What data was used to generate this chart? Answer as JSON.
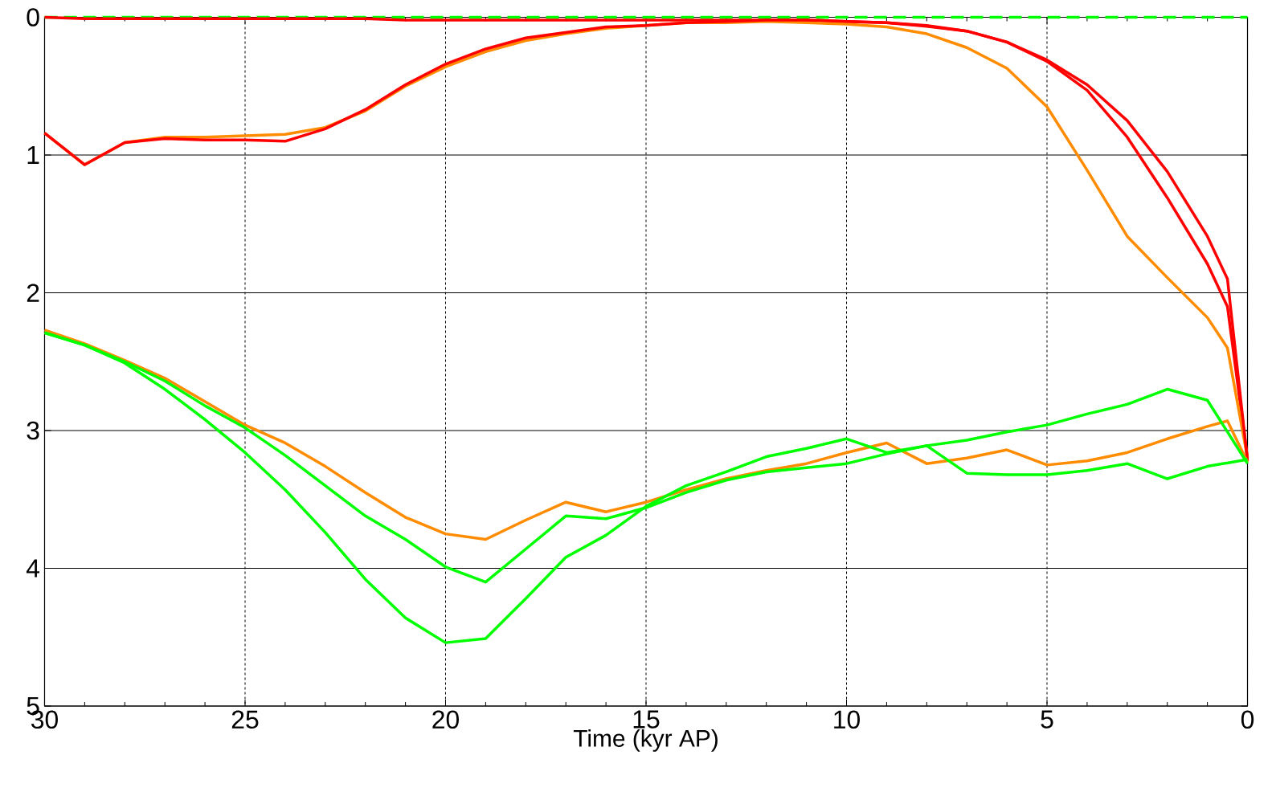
{
  "chart_data": {
    "type": "line",
    "xlabel": "Time (kyr AP)",
    "x": [
      30,
      29,
      28,
      27,
      26,
      25,
      24,
      23,
      22,
      21,
      20,
      19,
      18,
      17,
      16,
      15,
      14,
      13,
      12,
      11,
      10,
      9,
      8,
      7,
      6,
      5,
      4,
      3,
      2,
      1,
      0.5,
      0
    ],
    "xlim": [
      30,
      0
    ],
    "xticks": [
      30,
      25,
      20,
      15,
      10,
      5,
      0
    ],
    "ylim": [
      5,
      0
    ],
    "yticks": [
      0,
      1,
      2,
      3,
      4,
      5
    ],
    "grid": true,
    "marker": "none",
    "series": [
      {
        "color": "#00ff00",
        "line_style": "dashed",
        "values": [
          0,
          0,
          0,
          0,
          0,
          0,
          0,
          0,
          0,
          0,
          0,
          0,
          0,
          0,
          0,
          0,
          0,
          0,
          0,
          0,
          0,
          0,
          0,
          0,
          0,
          0,
          0,
          0,
          0,
          0,
          0,
          0
        ]
      },
      {
        "color": "#ff0000",
        "values": [
          0,
          0.01,
          0.01,
          0.01,
          0.01,
          0.01,
          0.01,
          0.01,
          0.01,
          0.02,
          0.02,
          0.02,
          0.02,
          0.02,
          0.02,
          0.02,
          0.02,
          0.02,
          0.02,
          0.02,
          0.03,
          0.04,
          0.06,
          0.1,
          0.18,
          0.32,
          0.53,
          0.87,
          1.31,
          1.79,
          2.1,
          3.2
        ]
      },
      {
        "color": "#ff8c00",
        "values": [
          0.84,
          1.07,
          0.91,
          0.87,
          0.87,
          0.86,
          0.85,
          0.8,
          0.68,
          0.5,
          0.36,
          0.25,
          0.17,
          0.12,
          0.08,
          0.06,
          0.04,
          0.04,
          0.03,
          0.04,
          0.05,
          0.07,
          0.12,
          0.22,
          0.37,
          0.65,
          1.11,
          1.59,
          1.89,
          2.18,
          2.4,
          3.2
        ]
      },
      {
        "color": "#ff0000",
        "values": [
          0.84,
          1.07,
          0.91,
          0.88,
          0.89,
          0.89,
          0.9,
          0.81,
          0.67,
          0.49,
          0.34,
          0.23,
          0.15,
          0.11,
          0.07,
          0.06,
          0.04,
          0.03,
          0.02,
          0.02,
          0.03,
          0.04,
          0.065,
          0.1,
          0.18,
          0.31,
          0.49,
          0.75,
          1.12,
          1.59,
          1.9,
          3.22
        ]
      },
      {
        "color": "#ff8c00",
        "values": [
          2.27,
          2.37,
          2.49,
          2.62,
          2.79,
          2.96,
          3.09,
          3.26,
          3.45,
          3.63,
          3.75,
          3.79,
          3.65,
          3.52,
          3.59,
          3.52,
          3.43,
          3.35,
          3.29,
          3.24,
          3.16,
          3.09,
          3.24,
          3.2,
          3.14,
          3.25,
          3.22,
          3.16,
          3.06,
          2.97,
          2.93,
          3.23
        ]
      },
      {
        "color": "#00ff00",
        "values": [
          2.29,
          2.38,
          2.5,
          2.64,
          2.82,
          2.98,
          3.18,
          3.4,
          3.62,
          3.79,
          3.99,
          4.1,
          3.86,
          3.62,
          3.64,
          3.56,
          3.45,
          3.36,
          3.3,
          3.27,
          3.24,
          3.17,
          3.11,
          3.31,
          3.32,
          3.32,
          3.29,
          3.24,
          3.35,
          3.26,
          null,
          3.21
        ]
      },
      {
        "color": "#00ff00",
        "values": [
          2.29,
          2.38,
          2.51,
          2.7,
          2.92,
          3.16,
          3.43,
          3.74,
          4.08,
          4.36,
          4.54,
          4.51,
          4.22,
          3.92,
          3.76,
          3.55,
          3.4,
          3.3,
          3.19,
          3.13,
          3.06,
          3.16,
          3.11,
          3.07,
          3.01,
          2.96,
          2.88,
          2.81,
          2.7,
          2.78,
          null,
          3.24
        ]
      }
    ]
  }
}
